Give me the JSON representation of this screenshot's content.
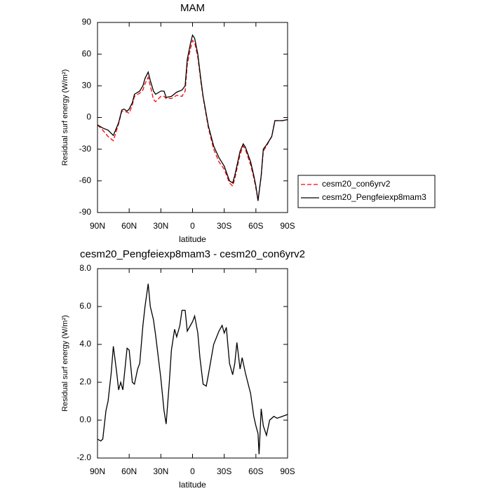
{
  "chart_data": [
    {
      "type": "line",
      "title": "MAM",
      "x_label": "latitude",
      "y_label": "Residual surf energy (W/m²)",
      "x": [
        90,
        85,
        80,
        75,
        70,
        67,
        65,
        62,
        60,
        57,
        55,
        50,
        47,
        45,
        42,
        40,
        37,
        35,
        30,
        27,
        25,
        20,
        15,
        10,
        7,
        5,
        2,
        0,
        -2,
        -5,
        -8,
        -10,
        -15,
        -20,
        -25,
        -30,
        -35,
        -38,
        -40,
        -45,
        -48,
        -50,
        -55,
        -58,
        -60,
        -62,
        -65,
        -67,
        -70,
        -75,
        -78,
        -80,
        -85,
        -90
      ],
      "series": [
        {
          "name": "cesm20_con6yrv2",
          "color": "#ff0000",
          "linestyle": "dashed",
          "values": [
            -7,
            -12,
            -18,
            -22,
            -6,
            6,
            6,
            5,
            4,
            12,
            20,
            23,
            26,
            32,
            38,
            30,
            17,
            15,
            20,
            20,
            18,
            18,
            21,
            20,
            25,
            50,
            65,
            73,
            71,
            57,
            33,
            19,
            -10,
            -30,
            -42,
            -49,
            -62,
            -65,
            -58,
            -35,
            -27,
            -30,
            -45,
            -57,
            -67,
            -78,
            -56,
            -32,
            -27,
            -18,
            -3,
            -3,
            -3,
            -2
          ]
        },
        {
          "name": "cesm20_Pengfeiexp8mam3",
          "color": "#000000",
          "linestyle": "solid",
          "values": [
            -7,
            -10,
            -12,
            -17,
            -5,
            7,
            8,
            6,
            8,
            14,
            22,
            25,
            30,
            37,
            43,
            35,
            25,
            22,
            25,
            25,
            19,
            20,
            24,
            26,
            30,
            55,
            70,
            78,
            75,
            60,
            35,
            20,
            -8,
            -27,
            -38,
            -46,
            -60,
            -62,
            -55,
            -32,
            -25,
            -28,
            -42,
            -55,
            -65,
            -79,
            -55,
            -30,
            -26,
            -18,
            -3,
            -3,
            -3,
            -2
          ]
        }
      ],
      "xlim": [
        90,
        -90
      ],
      "ylim": [
        -90,
        90
      ],
      "xticks": [
        {
          "value": 90,
          "label": "90N"
        },
        {
          "value": 60,
          "label": "60N"
        },
        {
          "value": 30,
          "label": "30N"
        },
        0,
        {
          "value": -30,
          "label": "30S"
        },
        {
          "value": -60,
          "label": "60S"
        },
        {
          "value": -90,
          "label": "90S"
        }
      ],
      "yticks": [
        -90,
        -60,
        -30,
        0,
        30,
        60,
        90
      ],
      "legend": "outside-right"
    },
    {
      "type": "line",
      "title": "cesm20_Pengfeiexp8mam3 - cesm20_con6yrv2",
      "x_label": "latitude",
      "y_label": "Residual surf energy (W/m²)",
      "x": [
        90,
        87,
        85,
        82,
        80,
        77,
        75,
        72,
        70,
        68,
        66,
        62,
        60,
        57,
        55,
        52,
        50,
        47,
        45,
        42,
        40,
        37,
        35,
        30,
        27,
        25,
        22,
        20,
        17,
        15,
        12,
        10,
        7,
        5,
        2,
        0,
        -2,
        -5,
        -7,
        -10,
        -13,
        -15,
        -20,
        -25,
        -28,
        -30,
        -32,
        -35,
        -38,
        -40,
        -42,
        -45,
        -47,
        -50,
        -55,
        -58,
        -60,
        -62,
        -63,
        -65,
        -67,
        -70,
        -73,
        -77,
        -80,
        -85,
        -90
      ],
      "color": "#000000",
      "values": [
        -1.0,
        -1.1,
        -1.0,
        0.5,
        1.0,
        2.5,
        3.9,
        2.6,
        1.6,
        2.0,
        1.6,
        3.8,
        3.7,
        2.0,
        1.9,
        2.7,
        3.0,
        5.0,
        6.0,
        7.2,
        6.0,
        5.3,
        4.5,
        2.2,
        0.5,
        -0.2,
        2.0,
        3.7,
        4.8,
        4.4,
        5.0,
        5.8,
        5.8,
        4.7,
        5.0,
        5.2,
        5.5,
        4.6,
        3.3,
        1.9,
        1.8,
        2.4,
        4.0,
        4.7,
        5.0,
        4.6,
        4.9,
        3.0,
        2.4,
        3.0,
        4.1,
        2.7,
        3.3,
        2.5,
        1.4,
        0.2,
        -0.3,
        -0.7,
        -1.8,
        0.6,
        -0.3,
        -0.8,
        0.0,
        0.2,
        0.1,
        0.2,
        0.3
      ],
      "xlim": [
        90,
        -90
      ],
      "ylim": [
        -2,
        8
      ],
      "xticks": [
        {
          "value": 90,
          "label": "90N"
        },
        {
          "value": 60,
          "label": "60N"
        },
        {
          "value": 30,
          "label": "30N"
        },
        0,
        {
          "value": -30,
          "label": "30S"
        },
        {
          "value": -60,
          "label": "60S"
        },
        {
          "value": -90,
          "label": "90S"
        }
      ],
      "yticks": [
        {
          "value": -2,
          "label": "-2.0"
        },
        {
          "value": 0,
          "label": "0.0"
        },
        {
          "value": 2,
          "label": "2.0"
        },
        {
          "value": 4,
          "label": "4.0"
        },
        {
          "value": 6,
          "label": "6.0"
        },
        {
          "value": 8,
          "label": "8.0"
        }
      ]
    }
  ]
}
